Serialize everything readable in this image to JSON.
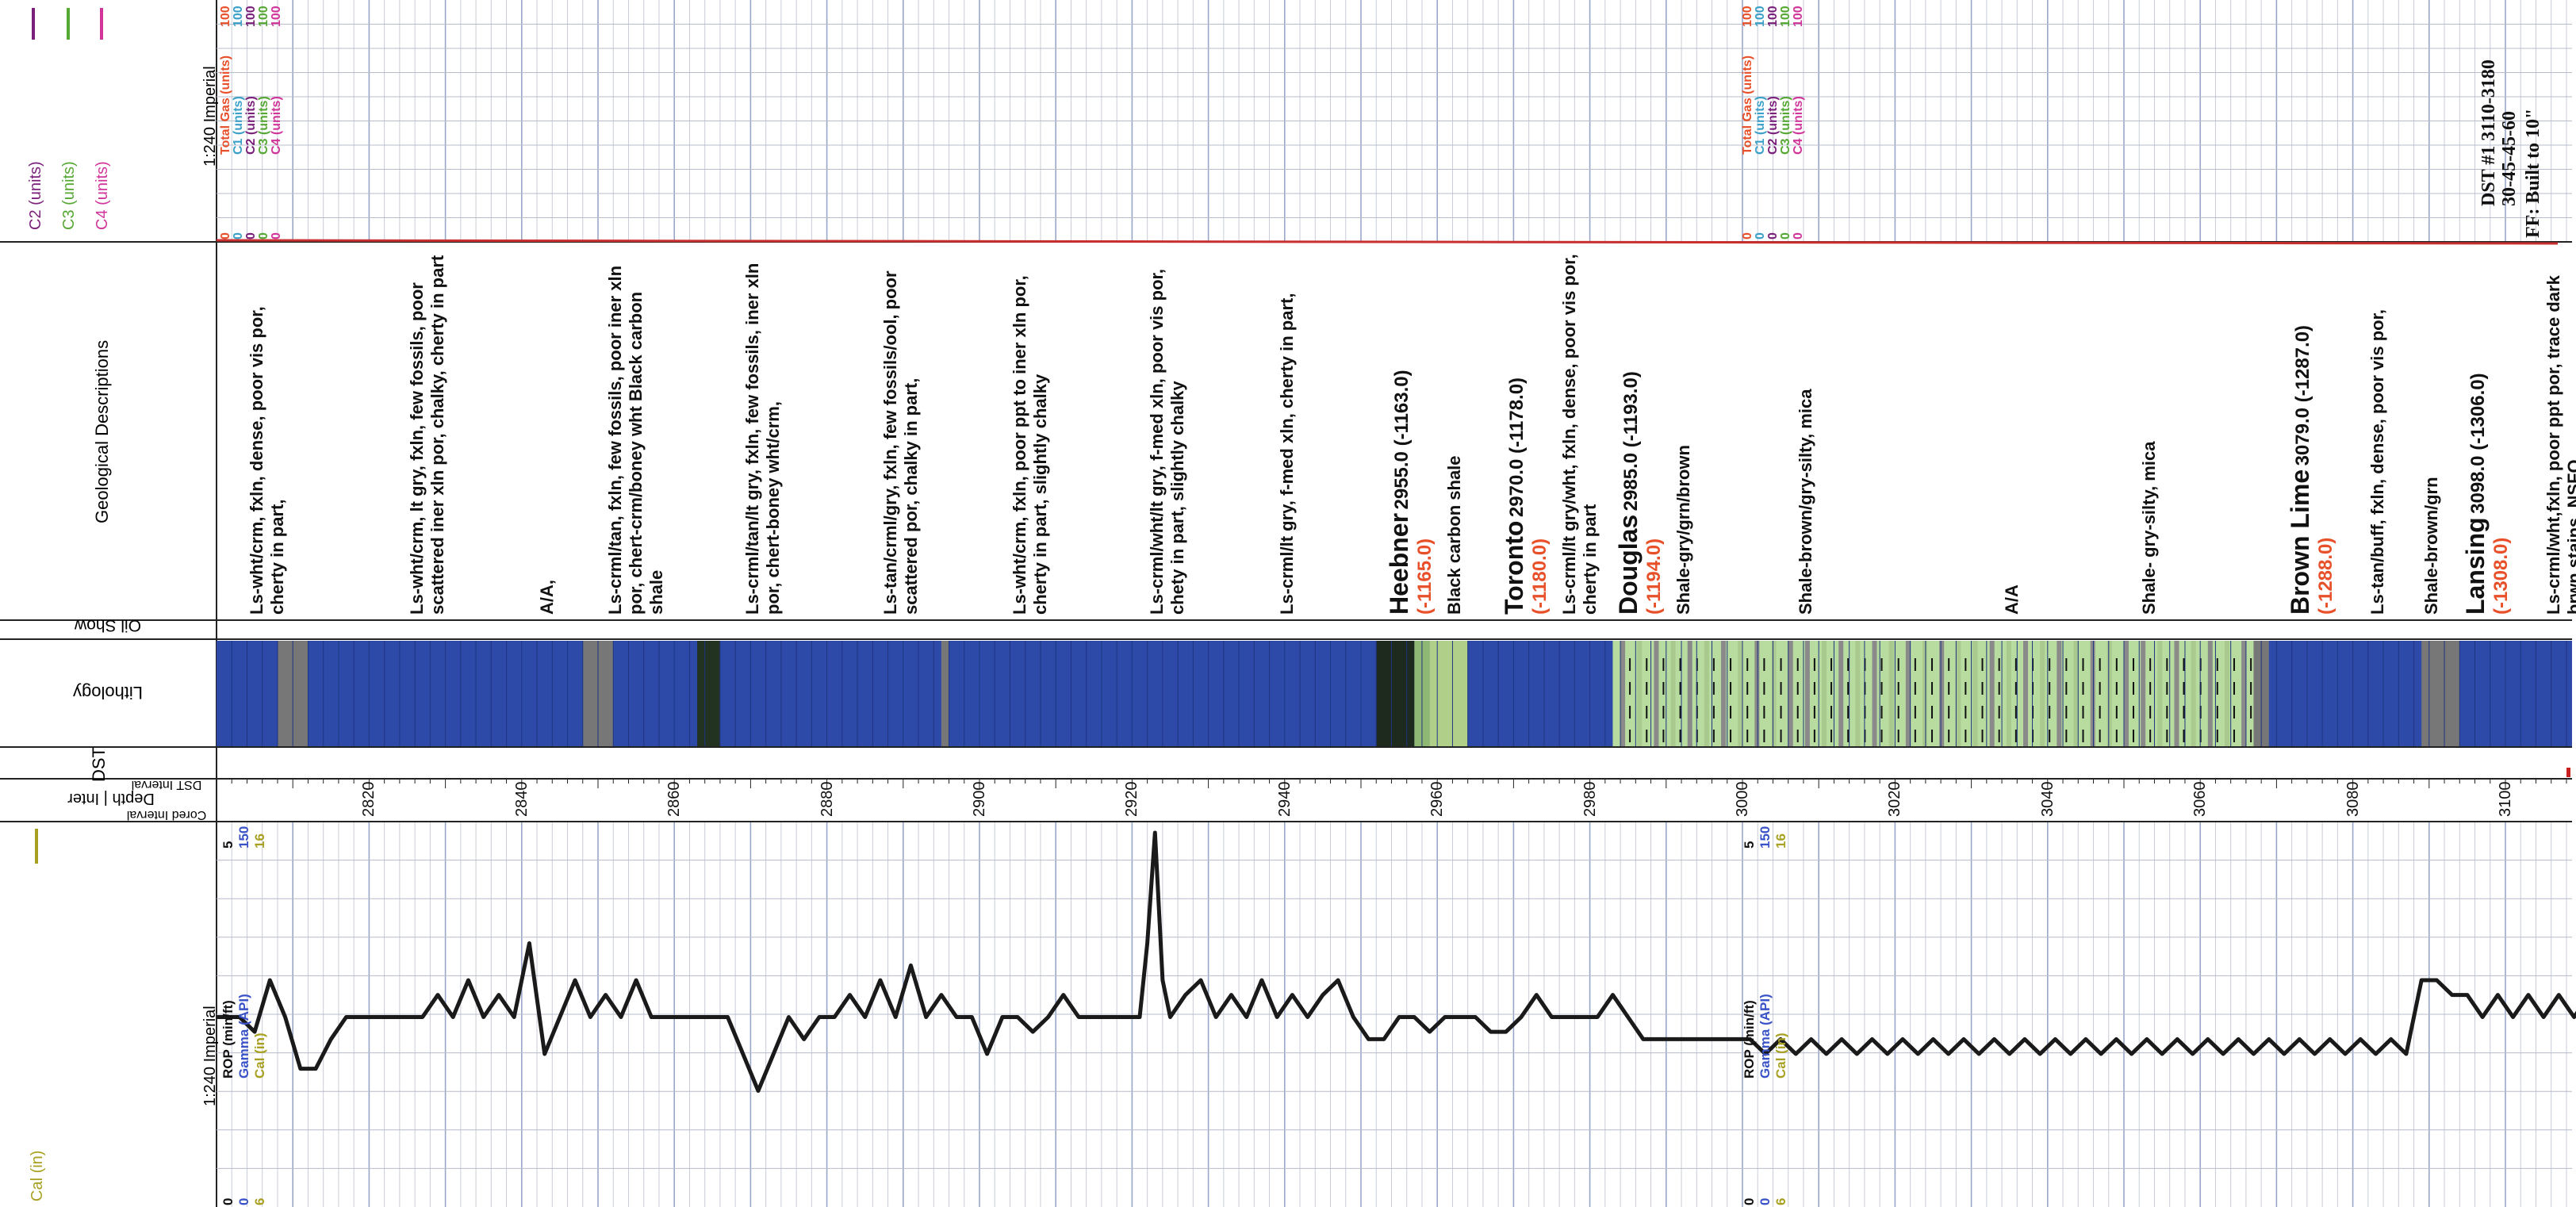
{
  "legend": {
    "colors": [
      "#7a1f7a",
      "#55a833",
      "#d1359a"
    ],
    "labels": [
      {
        "text": "C2 (units)",
        "color": "#7a1f7a"
      },
      {
        "text": "C3 (units)",
        "color": "#55a833"
      },
      {
        "text": "C4 (units)",
        "color": "#d1359a"
      }
    ]
  },
  "track_labels": {
    "geo": "Geological Descriptions",
    "oil": "Oil Show",
    "lith": "Lithology",
    "dst": "DST",
    "depth": "Depth | Inter",
    "dst_interval": "DST Interval",
    "cored": "Cored Interval",
    "cal": "Cal (in)"
  },
  "gas_header": {
    "scale": "1:240 Imperial",
    "curves": [
      {
        "name": "Total Gas (units)",
        "min": "0",
        "max": "100",
        "color": "#e8502a"
      },
      {
        "name": "C1 (units)",
        "min": "0",
        "max": "100",
        "color": "#3aa0c8"
      },
      {
        "name": "C2 (units)",
        "min": "0",
        "max": "100",
        "color": "#7a1f7a"
      },
      {
        "name": "C3 (units)",
        "min": "0",
        "max": "100",
        "color": "#55a833"
      },
      {
        "name": "C4 (units)",
        "min": "0",
        "max": "100",
        "color": "#d1359a"
      }
    ]
  },
  "gas_header_2": {
    "curves": [
      "Total Gas (units)",
      "C1 (units)",
      "C2 (units)",
      "C3 (units)",
      "C4 (units)"
    ]
  },
  "dst_note": [
    "DST #1 3110-3180",
    "30-45-45-60",
    "FF: Built to 10\""
  ],
  "descriptions": [
    {
      "text": "Ls-wht/crm, fxln, dense, poor vis por, cherty in part,",
      "depth": 2805
    },
    {
      "text": "Ls-wht/crm, lt gry, fxln, few fossils, poor scattered iner xln por, chalky, cherty in part",
      "depth": 2826
    },
    {
      "text": "A/A,",
      "depth": 2843
    },
    {
      "text": "Ls-crml/tan, fxln, few fossils, poor iner xln por, chert-crm/boney wht Black carbon shale",
      "depth": 2852
    },
    {
      "text": "Ls-crml/tan/lt gry, fxln, few fossils, iner xln por, chert-boney wht/crm,",
      "depth": 2870
    },
    {
      "text": "Ls-tan/crml/gry, fxln, few fossils/ool, poor scattered por, chalky in part,",
      "depth": 2888
    },
    {
      "text": "Ls-wht/crm, fxln, poor ppt to iner xln por, cherty in part, slightly chalky",
      "depth": 2905
    },
    {
      "text": "Ls-crml/wht/lt gry, f-med xln, poor vis por, chety in part, slightly chalky",
      "depth": 2923
    },
    {
      "text": "Ls-crml/lt gry, f-med xln, cherty in part,",
      "depth": 2940
    },
    {
      "text": "Black carbon shale",
      "depth": 2962
    },
    {
      "text": "Ls-crml/lt gry/wht, fxln, dense, poor vis por, cherty in part",
      "depth": 2977
    },
    {
      "text": "Shale-gry/grn/brown",
      "depth": 2992
    },
    {
      "text": "Shale-brown/gry-silty, mica",
      "depth": 3008
    },
    {
      "text": "A/A",
      "depth": 3035
    },
    {
      "text": "Shale- gry-silty, mica",
      "depth": 3053
    },
    {
      "text": "Ls-tan/buff, fxln, dense, poor vis por,",
      "depth": 3083
    },
    {
      "text": "Shale-brown/grn",
      "depth": 3090
    },
    {
      "text": "Ls-crml/wht,fxln, poor ppt por, trace dark brwn stains, NSFO,",
      "depth": 3106
    }
  ],
  "formations": [
    {
      "name": "Heebner",
      "depth": "2955.0 (-1163.0)",
      "subsea": "(-1165.0)",
      "at": 2954
    },
    {
      "name": "Toronto",
      "depth": "2970.0 (-1178.0)",
      "subsea": "(-1180.0)",
      "at": 2969
    },
    {
      "name": "Douglas",
      "depth": "2985.0 (-1193.0)",
      "subsea": "(-1194.0)",
      "at": 2984
    },
    {
      "name": "Brown Lime",
      "depth": "3079.0 (-1287.0)",
      "subsea": "(-1288.0)",
      "at": 3072
    },
    {
      "name": "Lansing",
      "depth": "3098.0 (-1306.0)",
      "subsea": "(-1308.0)",
      "at": 3095
    }
  ],
  "depth_ticks": [
    2820,
    2840,
    2860,
    2880,
    2900,
    2920,
    2940,
    2960,
    2980,
    3000,
    3020,
    3040,
    3060,
    3080,
    3100
  ],
  "log_header": {
    "scale": "1:240 Imperial",
    "curves": [
      {
        "name": "ROP (min/ft)",
        "min": "0",
        "max": "5",
        "color": "#111111"
      },
      {
        "name": "Gamma (API)",
        "min": "0",
        "max": "150",
        "color": "#3a52c8"
      },
      {
        "name": "Cal (in)",
        "min": "6",
        "max": "16",
        "color": "#a8a020"
      }
    ]
  },
  "chart_data": {
    "type": "line",
    "x_label": "Depth",
    "x_range": [
      2800,
      3112
    ],
    "series": [
      {
        "name": "ROP (min/ft)",
        "x": [
          2800,
          2803,
          2805,
          2807,
          2809,
          2811,
          2813,
          2815,
          2817,
          2819,
          2821,
          2823,
          2825,
          2827,
          2829,
          2831,
          2833,
          2835,
          2837,
          2839,
          2841,
          2843,
          2845,
          2847,
          2849,
          2851,
          2853,
          2855,
          2857,
          2859,
          2861,
          2863,
          2865,
          2867,
          2869,
          2871,
          2873,
          2875,
          2877,
          2879,
          2881,
          2883,
          2885,
          2887,
          2889,
          2891,
          2893,
          2895,
          2897,
          2899,
          2901,
          2903,
          2905,
          2907,
          2909,
          2911,
          2913,
          2915,
          2917,
          2919,
          2921,
          2922,
          2923,
          2924,
          2925,
          2927,
          2929,
          2931,
          2933,
          2935,
          2937,
          2939,
          2941,
          2943,
          2945,
          2947,
          2949,
          2951,
          2953,
          2955,
          2957,
          2959,
          2961,
          2963,
          2965,
          2967,
          2969,
          2971,
          2973,
          2975,
          2977,
          2979,
          2981,
          2983,
          2985,
          2987,
          2989,
          2991,
          2993,
          2995,
          2997,
          2999,
          3001,
          3003,
          3005,
          3007,
          3009,
          3011,
          3013,
          3015,
          3017,
          3019,
          3021,
          3023,
          3025,
          3027,
          3029,
          3031,
          3033,
          3035,
          3037,
          3039,
          3041,
          3043,
          3045,
          3047,
          3049,
          3051,
          3053,
          3055,
          3057,
          3059,
          3061,
          3063,
          3065,
          3067,
          3069,
          3071,
          3073,
          3075,
          3077,
          3079,
          3081,
          3083,
          3085,
          3087,
          3089,
          3091,
          3093,
          3095,
          3097,
          3099,
          3101,
          3103,
          3105,
          3107,
          3109,
          3111
        ],
        "values": [
          2.5,
          2.5,
          2.3,
          3.0,
          2.5,
          1.8,
          1.8,
          2.2,
          2.5,
          2.5,
          2.5,
          2.5,
          2.5,
          2.5,
          2.8,
          2.5,
          3.0,
          2.5,
          2.8,
          2.5,
          3.5,
          2.0,
          2.5,
          3.0,
          2.5,
          2.8,
          2.5,
          3.0,
          2.5,
          2.5,
          2.5,
          2.5,
          2.5,
          2.5,
          2.0,
          1.5,
          2.0,
          2.5,
          2.2,
          2.5,
          2.5,
          2.8,
          2.5,
          3.0,
          2.5,
          3.2,
          2.5,
          2.8,
          2.5,
          2.5,
          2.0,
          2.5,
          2.5,
          2.3,
          2.5,
          2.8,
          2.5,
          2.5,
          2.5,
          2.5,
          2.5,
          3.5,
          5.0,
          3.0,
          2.5,
          2.8,
          3.0,
          2.5,
          2.8,
          2.5,
          3.0,
          2.5,
          2.8,
          2.5,
          2.8,
          3.0,
          2.5,
          2.2,
          2.2,
          2.5,
          2.5,
          2.3,
          2.5,
          2.5,
          2.5,
          2.3,
          2.3,
          2.5,
          2.8,
          2.5,
          2.5,
          2.5,
          2.5,
          2.8,
          2.5,
          2.2,
          2.2,
          2.2,
          2.2,
          2.2,
          2.2,
          2.2,
          2.2,
          2.0,
          2.2,
          2.0,
          2.2,
          2.0,
          2.2,
          2.0,
          2.2,
          2.0,
          2.2,
          2.0,
          2.2,
          2.0,
          2.2,
          2.0,
          2.2,
          2.0,
          2.2,
          2.0,
          2.2,
          2.0,
          2.2,
          2.0,
          2.2,
          2.0,
          2.2,
          2.0,
          2.2,
          2.0,
          2.2,
          2.0,
          2.2,
          2.0,
          2.2,
          2.0,
          2.2,
          2.0,
          2.2,
          2.0,
          2.2,
          2.0,
          2.2,
          2.0,
          3.0,
          3.0,
          2.8,
          2.8,
          2.5,
          2.8,
          2.5,
          2.8,
          2.5,
          2.8,
          2.5,
          2.8
        ]
      }
    ]
  }
}
